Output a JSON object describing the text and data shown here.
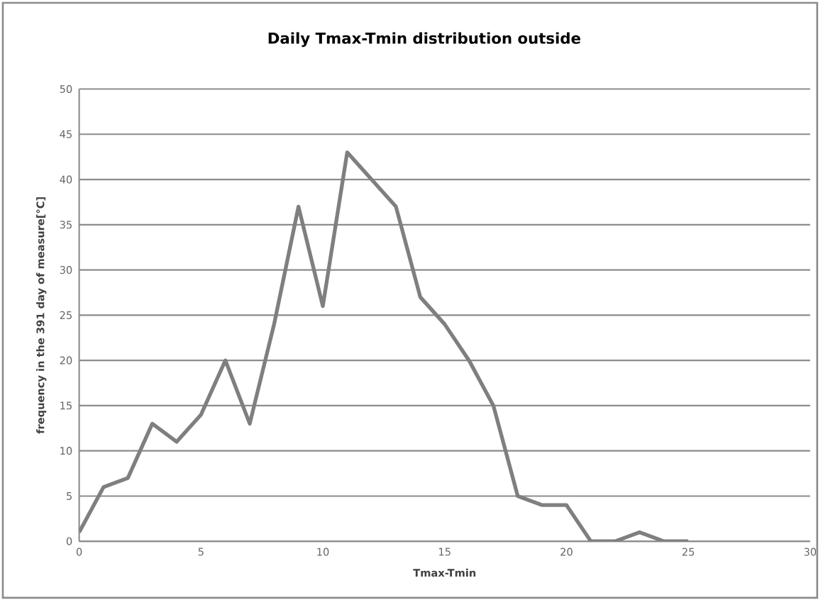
{
  "chart_data": {
    "type": "line",
    "title": "Daily Tmax-Tmin distribution outside",
    "xlabel": "Tmax-Tmin",
    "ylabel": "frequency in the 391 day of measure[°C]",
    "x": [
      0,
      1,
      2,
      3,
      4,
      5,
      6,
      7,
      8,
      9,
      10,
      11,
      12,
      13,
      14,
      15,
      16,
      17,
      18,
      19,
      20,
      21,
      22,
      23,
      24,
      25
    ],
    "series": [
      {
        "color": "#7f7f7f",
        "values": [
          1,
          6,
          7,
          13,
          11,
          14,
          20,
          13,
          24,
          37,
          26,
          43,
          40,
          37,
          27,
          24,
          20,
          15,
          5,
          4,
          4,
          0,
          0,
          1,
          0,
          0
        ]
      }
    ],
    "xlim": [
      0,
      30
    ],
    "xticks": [
      0,
      5,
      10,
      15,
      20,
      25,
      30
    ],
    "ylim": [
      0,
      50
    ],
    "yticks": [
      0,
      5,
      10,
      15,
      20,
      25,
      30,
      35,
      40,
      45,
      50
    ],
    "grid": "y"
  }
}
